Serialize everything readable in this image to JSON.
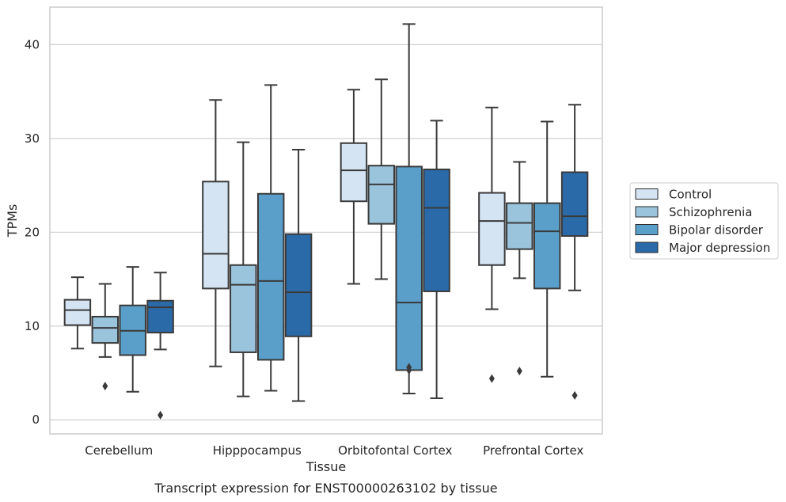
{
  "chart_data": {
    "type": "box",
    "xlabel": "Tissue",
    "ylabel": "TPMs",
    "caption": "Transcript expression for ENST00000263102 by tissue",
    "ylim": [
      -1.5,
      44
    ],
    "yticks": [
      0,
      10,
      20,
      30,
      40
    ],
    "grid": true,
    "legend_position": "right",
    "categories": [
      "Cerebellum",
      "Hipppocampus",
      "Orbitofontal Cortex",
      "Prefrontal Cortex"
    ],
    "series": [
      {
        "name": "Control",
        "color": "#d4e4f3",
        "boxes": [
          {
            "whislo": 7.6,
            "q1": 10.1,
            "med": 11.7,
            "q3": 12.8,
            "whishi": 15.2,
            "fliers": []
          },
          {
            "whislo": 5.7,
            "q1": 14.0,
            "med": 17.7,
            "q3": 25.4,
            "whishi": 34.1,
            "fliers": []
          },
          {
            "whislo": 14.5,
            "q1": 23.3,
            "med": 26.6,
            "q3": 29.5,
            "whishi": 35.2,
            "fliers": []
          },
          {
            "whislo": 11.8,
            "q1": 16.5,
            "med": 21.2,
            "q3": 24.2,
            "whishi": 33.3,
            "fliers": [
              4.4
            ]
          }
        ]
      },
      {
        "name": "Schizophrenia",
        "color": "#9ac3dc",
        "boxes": [
          {
            "whislo": 6.7,
            "q1": 8.2,
            "med": 9.8,
            "q3": 11.0,
            "whishi": 14.5,
            "fliers": [
              3.6
            ]
          },
          {
            "whislo": 2.5,
            "q1": 7.2,
            "med": 14.4,
            "q3": 16.5,
            "whishi": 29.6,
            "fliers": []
          },
          {
            "whislo": 15.0,
            "q1": 20.9,
            "med": 25.1,
            "q3": 27.1,
            "whishi": 36.3,
            "fliers": []
          },
          {
            "whislo": 15.1,
            "q1": 18.2,
            "med": 21.0,
            "q3": 23.1,
            "whishi": 27.5,
            "fliers": [
              5.2
            ]
          }
        ]
      },
      {
        "name": "Bipolar disorder",
        "color": "#5a9fc9",
        "boxes": [
          {
            "whislo": 3.0,
            "q1": 6.9,
            "med": 9.5,
            "q3": 12.2,
            "whishi": 16.3,
            "fliers": []
          },
          {
            "whislo": 3.1,
            "q1": 6.4,
            "med": 14.8,
            "q3": 24.1,
            "whishi": 35.7,
            "fliers": []
          },
          {
            "whislo": 2.8,
            "q1": 5.3,
            "med": 12.5,
            "q3": 27.0,
            "whishi": 42.2,
            "fliers": [
              5.3,
              5.6
            ]
          },
          {
            "whislo": 4.6,
            "q1": 14.0,
            "med": 20.1,
            "q3": 23.1,
            "whishi": 31.8,
            "fliers": []
          }
        ]
      },
      {
        "name": "Major depression",
        "color": "#2b6aa9",
        "boxes": [
          {
            "whislo": 7.5,
            "q1": 9.3,
            "med": 12.0,
            "q3": 12.7,
            "whishi": 15.7,
            "fliers": [
              0.5
            ]
          },
          {
            "whislo": 2.0,
            "q1": 8.9,
            "med": 13.6,
            "q3": 19.8,
            "whishi": 28.8,
            "fliers": []
          },
          {
            "whislo": 2.3,
            "q1": 13.7,
            "med": 22.6,
            "q3": 26.7,
            "whishi": 31.9,
            "fliers": []
          },
          {
            "whislo": 13.8,
            "q1": 19.6,
            "med": 21.7,
            "q3": 26.4,
            "whishi": 33.6,
            "fliers": [
              2.6
            ]
          }
        ]
      }
    ]
  }
}
